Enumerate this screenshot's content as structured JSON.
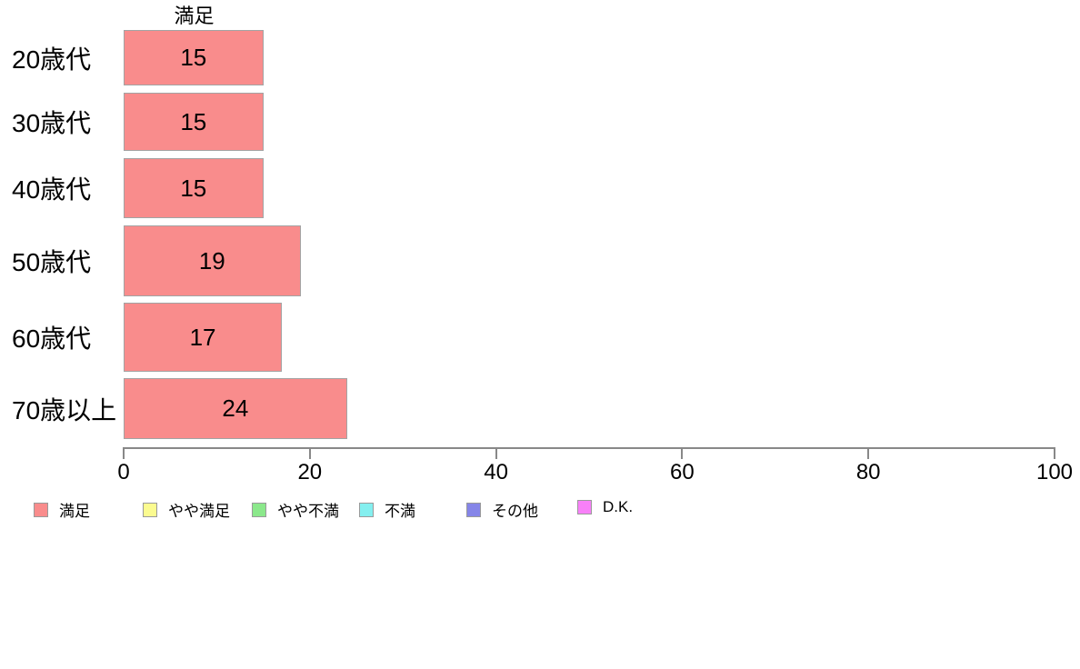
{
  "chart_data": {
    "type": "bar",
    "orientation": "horizontal",
    "title": "満足",
    "categories": [
      "20歳代",
      "30歳代",
      "40歳代",
      "50歳代",
      "60歳代",
      "70歳以上"
    ],
    "series": [
      {
        "name": "満足",
        "values": [
          15,
          15,
          15,
          19,
          17,
          24
        ]
      }
    ],
    "value_labels_shown": true,
    "xlabel": "",
    "ylabel": "",
    "xlim": [
      0,
      100
    ],
    "x_ticks": [
      "0",
      "20",
      "40",
      "60",
      "80",
      "100"
    ],
    "grid": false,
    "legend_position": "bottom",
    "bar_color": "#f98c8c",
    "bar_border_color": "#a3a3a3",
    "axis_color": "#888888"
  },
  "legend": {
    "items": [
      {
        "label": "満足",
        "color": "#f98c8c"
      },
      {
        "label": "やや満足",
        "color": "#fbfb90"
      },
      {
        "label": "やや不満",
        "color": "#8be88b"
      },
      {
        "label": "不満",
        "color": "#84efef"
      },
      {
        "label": "その他",
        "color": "#8585e8"
      },
      {
        "label": "D.K.",
        "color": "#f880f8"
      }
    ]
  }
}
